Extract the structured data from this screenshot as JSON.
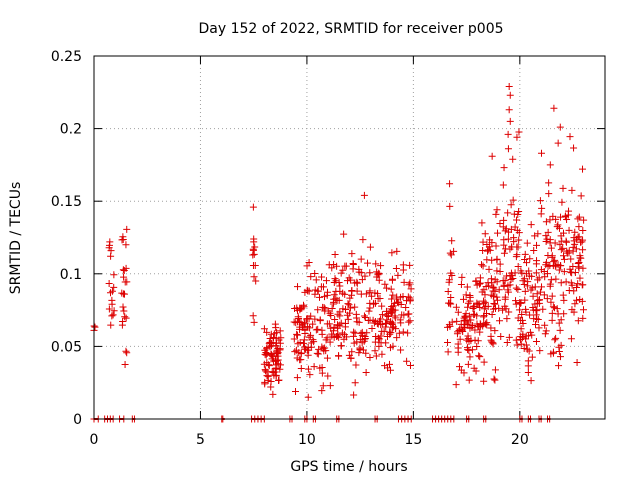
{
  "chart_data": {
    "type": "scatter",
    "title": "Day 152 of 2022, SRMTID for receiver p005",
    "xlabel": "GPS time / hours",
    "ylabel": "SRMTID / TECUs",
    "xlim": [
      0,
      24
    ],
    "ylim": [
      0,
      0.25
    ],
    "xticks": [
      0,
      5,
      10,
      15,
      20
    ],
    "xtick_labels": [
      "0",
      "5",
      "10",
      "15",
      "20"
    ],
    "yticks": [
      0,
      0.05,
      0.1,
      0.15,
      0.2,
      0.25
    ],
    "ytick_labels": [
      "0",
      "0.05",
      "0.1",
      "0.15",
      "0.2",
      "0.25"
    ],
    "grid": true,
    "marker": "+",
    "color": "#dd0000",
    "series": [
      {
        "name": "SRMTID",
        "clusters": [
          {
            "t0": 0.0,
            "t1": 0.05,
            "center": 0.062,
            "spread": 0.003,
            "count": 2
          },
          {
            "t0": 0.7,
            "t1": 0.95,
            "center": 0.092,
            "spread": 0.02,
            "count": 16
          },
          {
            "t0": 1.3,
            "t1": 1.55,
            "center": 0.082,
            "spread": 0.028,
            "count": 22
          },
          {
            "t0": 7.45,
            "t1": 7.6,
            "center": 0.095,
            "spread": 0.02,
            "count": 12
          },
          {
            "t0": 8.0,
            "t1": 8.8,
            "center": 0.045,
            "spread": 0.012,
            "count": 80
          },
          {
            "t0": 9.4,
            "t1": 10.0,
            "center": 0.06,
            "spread": 0.016,
            "count": 50
          },
          {
            "t0": 10.0,
            "t1": 11.0,
            "center": 0.07,
            "spread": 0.02,
            "count": 70
          },
          {
            "t0": 11.0,
            "t1": 12.0,
            "center": 0.068,
            "spread": 0.02,
            "count": 70
          },
          {
            "t0": 12.0,
            "t1": 13.0,
            "center": 0.075,
            "spread": 0.022,
            "count": 70
          },
          {
            "t0": 13.0,
            "t1": 14.0,
            "center": 0.07,
            "spread": 0.02,
            "count": 70
          },
          {
            "t0": 14.0,
            "t1": 14.9,
            "center": 0.072,
            "spread": 0.016,
            "count": 55
          },
          {
            "t0": 16.6,
            "t1": 16.9,
            "center": 0.085,
            "spread": 0.022,
            "count": 20
          },
          {
            "t0": 17.0,
            "t1": 18.2,
            "center": 0.065,
            "spread": 0.016,
            "count": 90
          },
          {
            "t0": 18.2,
            "t1": 19.2,
            "center": 0.088,
            "spread": 0.025,
            "count": 80
          },
          {
            "t0": 19.2,
            "t1": 20.0,
            "center": 0.11,
            "spread": 0.035,
            "count": 70
          },
          {
            "t0": 20.0,
            "t1": 21.0,
            "center": 0.085,
            "spread": 0.025,
            "count": 80
          },
          {
            "t0": 21.0,
            "t1": 22.0,
            "center": 0.1,
            "spread": 0.035,
            "count": 80
          },
          {
            "t0": 22.0,
            "t1": 23.0,
            "center": 0.12,
            "spread": 0.03,
            "count": 80
          }
        ],
        "outliers": [
          {
            "x": 16.7,
            "y": 0.162
          },
          {
            "x": 18.7,
            "y": 0.181
          },
          {
            "x": 19.5,
            "y": 0.229
          },
          {
            "x": 19.55,
            "y": 0.223
          },
          {
            "x": 19.5,
            "y": 0.213
          },
          {
            "x": 19.55,
            "y": 0.205
          },
          {
            "x": 19.45,
            "y": 0.196
          },
          {
            "x": 21.6,
            "y": 0.214
          },
          {
            "x": 21.9,
            "y": 0.201
          },
          {
            "x": 21.8,
            "y": 0.19
          },
          {
            "x": 12.7,
            "y": 0.154
          },
          {
            "x": 8.4,
            "y": 0.017
          },
          {
            "x": 8.3,
            "y": 0.022
          },
          {
            "x": 18.3,
            "y": 0.026
          },
          {
            "x": 20.4,
            "y": 0.032
          },
          {
            "x": 20.4,
            "y": 0.04
          },
          {
            "x": 20.35,
            "y": 0.048
          },
          {
            "x": 11.1,
            "y": 0.023
          },
          {
            "x": 7.5,
            "y": 0.124
          },
          {
            "x": 7.5,
            "y": 0.122
          },
          {
            "x": 1.5,
            "y": 0.12
          },
          {
            "x": 0.8,
            "y": 0.116
          },
          {
            "x": 0.0,
            "y": 0.061
          }
        ],
        "zero_segments": [
          [
            0.0,
            0.2
          ],
          [
            0.5,
            0.9
          ],
          [
            1.2,
            1.4
          ],
          [
            1.8,
            1.9
          ],
          [
            6.0,
            6.05
          ],
          [
            7.4,
            8.0
          ],
          [
            9.2,
            9.3
          ],
          [
            9.9,
            10.0
          ],
          [
            10.3,
            10.4
          ],
          [
            11.4,
            11.5
          ],
          [
            13.2,
            13.3
          ],
          [
            14.3,
            14.9
          ],
          [
            15.9,
            16.9
          ],
          [
            17.5,
            17.6
          ],
          [
            18.3,
            18.4
          ],
          [
            20.0,
            20.1
          ],
          [
            20.4,
            20.5
          ],
          [
            20.9,
            21.0
          ],
          [
            21.3,
            21.4
          ]
        ]
      }
    ]
  }
}
